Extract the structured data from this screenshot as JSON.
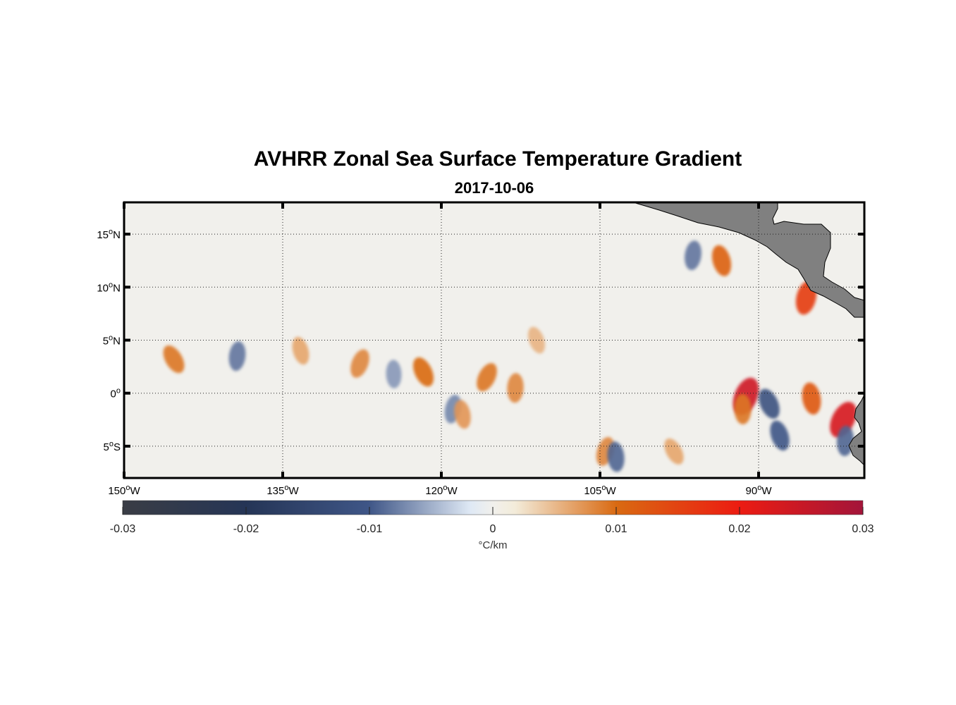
{
  "title": "AVHRR Zonal Sea Surface Temperature Gradient",
  "date": "2017-10-06",
  "map": {
    "lon_range": [
      -150,
      -80
    ],
    "lat_range": [
      -8,
      18
    ],
    "lon_ticks": [
      {
        "value": -150,
        "num": "150",
        "hemi": "W"
      },
      {
        "value": -135,
        "num": "135",
        "hemi": "W"
      },
      {
        "value": -120,
        "num": "120",
        "hemi": "W"
      },
      {
        "value": -105,
        "num": "105",
        "hemi": "W"
      },
      {
        "value": -90,
        "num": "90",
        "hemi": "W"
      }
    ],
    "lat_ticks": [
      {
        "value": 15,
        "num": "15",
        "hemi": "N"
      },
      {
        "value": 10,
        "num": "10",
        "hemi": "N"
      },
      {
        "value": 5,
        "num": "5",
        "hemi": "N"
      },
      {
        "value": 0,
        "num": "0",
        "hemi": ""
      },
      {
        "value": -5,
        "num": "5",
        "hemi": "S"
      }
    ],
    "grid": "dotted",
    "land_color": "#808080",
    "ocean_background": "#f1f0ec"
  },
  "colorbar": {
    "range": [
      -0.03,
      0.03
    ],
    "tick_values": [
      -0.03,
      -0.02,
      -0.01,
      0,
      0.01,
      0.02,
      0.03
    ],
    "tick_labels": [
      "-0.03",
      "-0.02",
      "-0.01",
      "0",
      "0.01",
      "0.02",
      "0.03"
    ],
    "units": "°C/km",
    "colors": [
      "#3a3d45",
      "#253556",
      "#3f5687",
      "#dfe9f5",
      "#f3ecda",
      "#d96a12",
      "#ec1c12",
      "#a3153a"
    ]
  },
  "chart_data": {
    "type": "heatmap",
    "title": "AVHRR Zonal Sea Surface Temperature Gradient",
    "subtitle": "2017-10-06",
    "x_unit": "longitude (deg)",
    "y_unit": "latitude (deg)",
    "value_units": "°C/km",
    "color_range": [
      -0.03,
      0.03
    ],
    "features": [
      {
        "lon": -145.3,
        "lat": 3.2,
        "value": 0.012
      },
      {
        "lon": -139.3,
        "lat": 3.5,
        "value": -0.011
      },
      {
        "lon": -133.3,
        "lat": 4.0,
        "value": 0.009
      },
      {
        "lon": -127.7,
        "lat": 2.8,
        "value": 0.011
      },
      {
        "lon": -124.5,
        "lat": 1.8,
        "value": -0.009
      },
      {
        "lon": -121.7,
        "lat": 2.0,
        "value": 0.013
      },
      {
        "lon": -118.9,
        "lat": -1.5,
        "value": -0.01
      },
      {
        "lon": -118.0,
        "lat": -2.0,
        "value": 0.01
      },
      {
        "lon": -115.7,
        "lat": 1.5,
        "value": 0.012
      },
      {
        "lon": -113.0,
        "lat": 0.5,
        "value": 0.011
      },
      {
        "lon": -111.0,
        "lat": 5.0,
        "value": 0.008
      },
      {
        "lon": -104.5,
        "lat": -5.5,
        "value": 0.011
      },
      {
        "lon": -103.5,
        "lat": -6.0,
        "value": -0.012
      },
      {
        "lon": -98.0,
        "lat": -5.5,
        "value": 0.009
      },
      {
        "lon": -96.2,
        "lat": 13.0,
        "value": -0.011
      },
      {
        "lon": -93.5,
        "lat": 12.5,
        "value": 0.014
      },
      {
        "lon": -91.2,
        "lat": -0.3,
        "value": 0.025
      },
      {
        "lon": -91.5,
        "lat": -1.5,
        "value": 0.012
      },
      {
        "lon": -89.0,
        "lat": -1.0,
        "value": -0.014
      },
      {
        "lon": -85.5,
        "lat": 9.0,
        "value": 0.018
      },
      {
        "lon": -85.0,
        "lat": -0.5,
        "value": 0.015
      },
      {
        "lon": -82.0,
        "lat": -2.5,
        "value": 0.024
      },
      {
        "lon": -81.8,
        "lat": -4.5,
        "value": -0.012
      },
      {
        "lon": -88.0,
        "lat": -4.0,
        "value": -0.013
      }
    ]
  }
}
